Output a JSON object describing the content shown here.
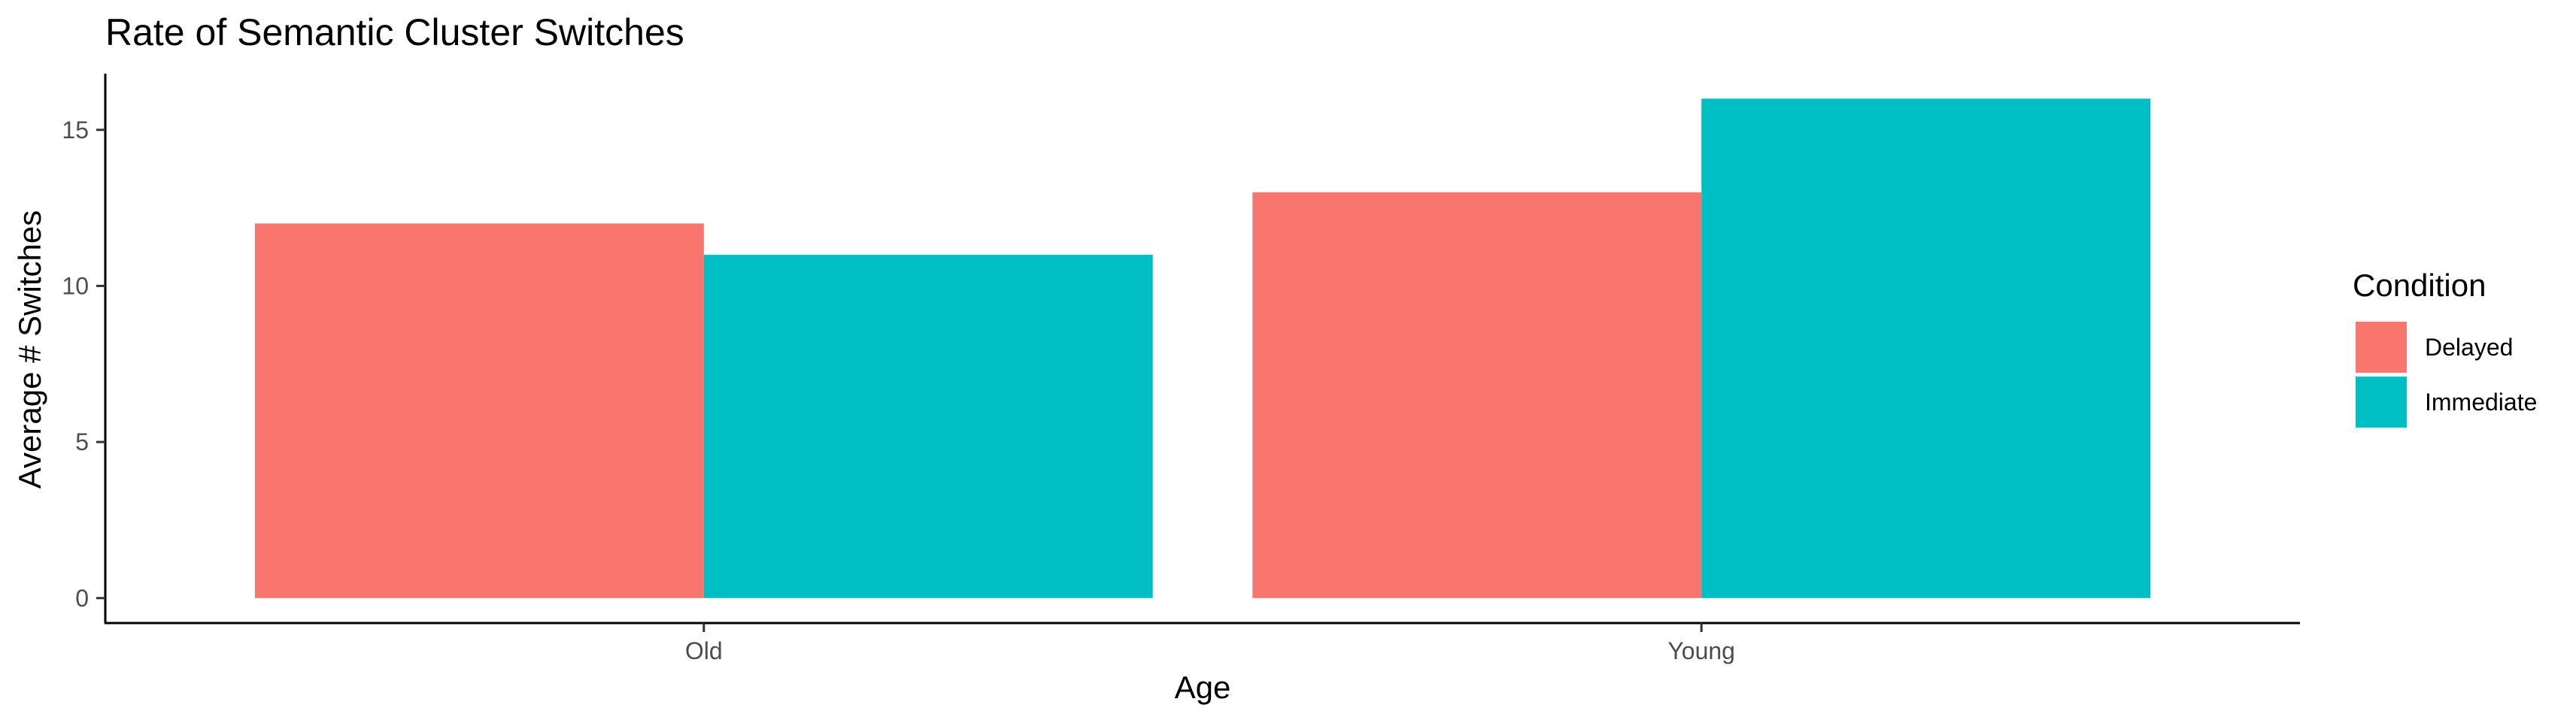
{
  "chart_data": {
    "type": "bar",
    "title": "Rate of Semantic Cluster Switches",
    "xlabel": "Age",
    "ylabel": "Average # Switches",
    "categories": [
      "Old",
      "Young"
    ],
    "series": [
      {
        "name": "Delayed",
        "values": [
          12,
          13
        ],
        "color": "#F8766D"
      },
      {
        "name": "Immediate",
        "values": [
          11,
          16
        ],
        "color": "#00BFC4"
      }
    ],
    "ylim": [
      -0.8,
      16.8
    ],
    "yticks": [
      0,
      5,
      10,
      15
    ],
    "grid": false,
    "legend": {
      "title": "Condition",
      "position": "right"
    }
  }
}
